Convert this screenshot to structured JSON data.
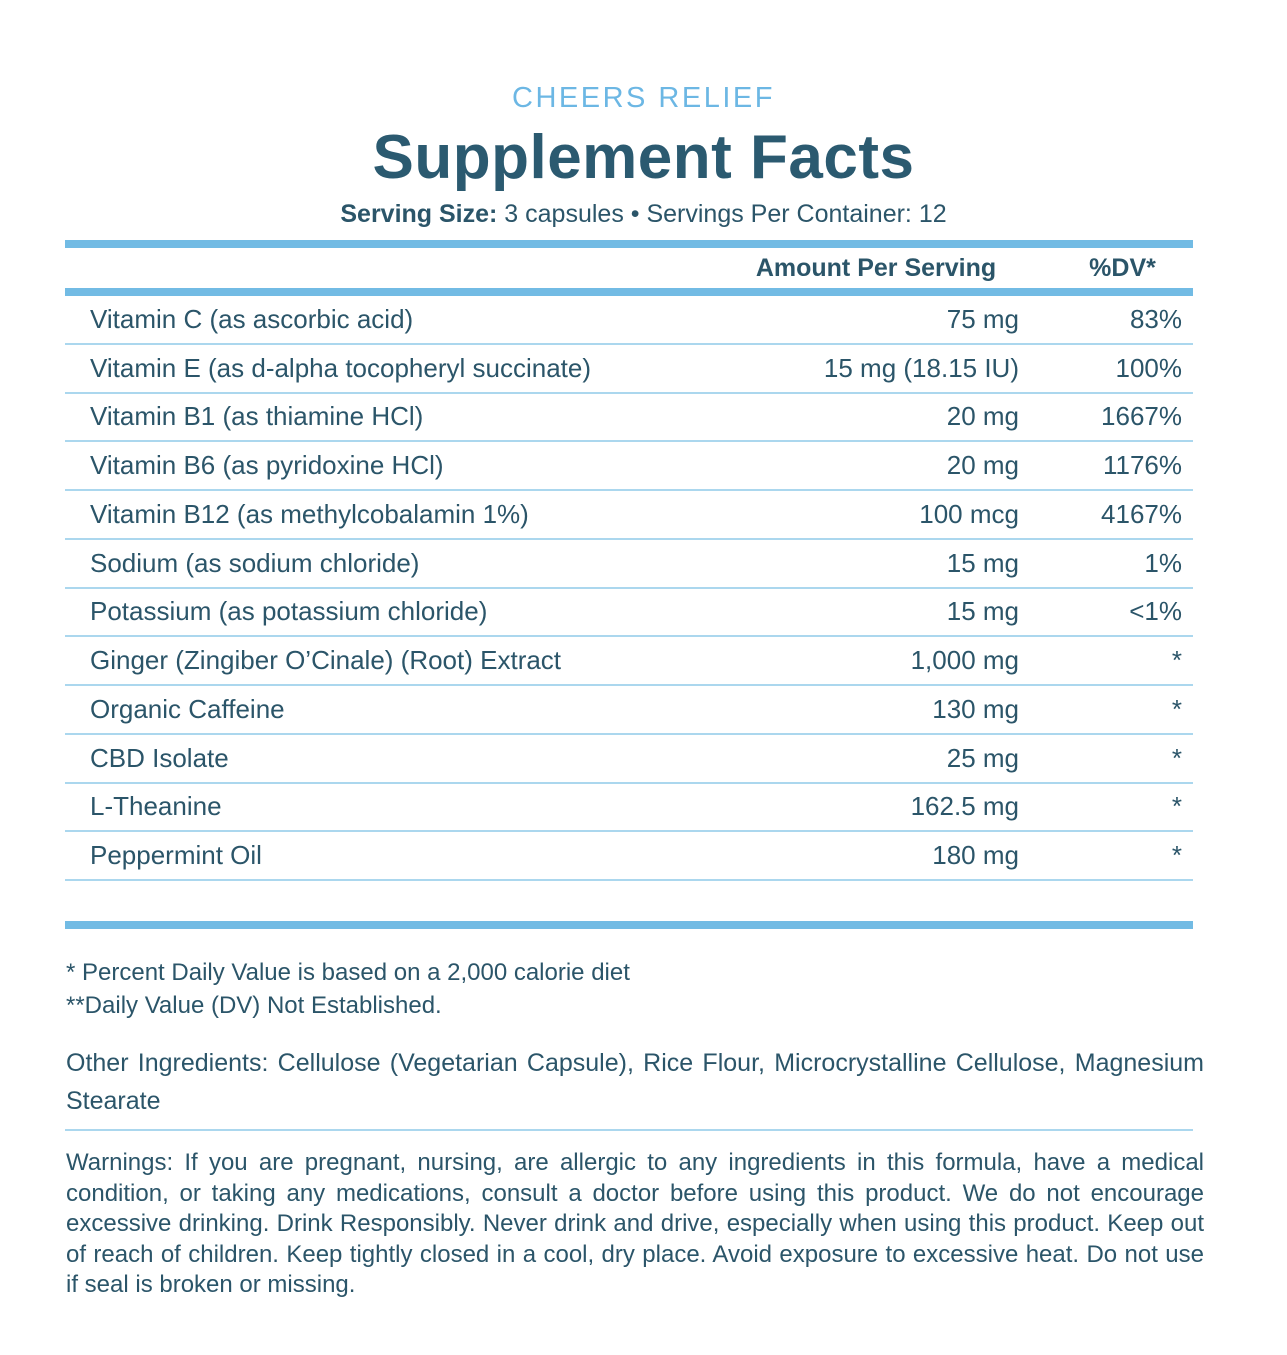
{
  "brand": "CHEERS RELIEF",
  "title": "Supplement Facts",
  "serving": {
    "label": "Serving Size:",
    "rest": " 3 capsules • Servings Per Container: 12"
  },
  "table": {
    "amount_header": "Amount Per Serving",
    "dv_header": "%DV*",
    "rows": [
      {
        "name": "Vitamin C (as ascorbic acid)",
        "amount": "75 mg",
        "dv": "83%"
      },
      {
        "name": "Vitamin E (as d-alpha tocopheryl succinate)",
        "amount": "15 mg (18.15 IU)",
        "dv": "100%"
      },
      {
        "name": "Vitamin B1 (as thiamine HCl)",
        "amount": "20 mg",
        "dv": "1667%"
      },
      {
        "name": "Vitamin B6 (as pyridoxine HCl)",
        "amount": "20 mg",
        "dv": "1176%"
      },
      {
        "name": "Vitamin B12 (as methylcobalamin 1%)",
        "amount": "100 mcg",
        "dv": "4167%"
      },
      {
        "name": "Sodium (as sodium chloride)",
        "amount": "15 mg",
        "dv": "1%"
      },
      {
        "name": "Potassium (as potassium chloride)",
        "amount": "15 mg",
        "dv": "<1%"
      },
      {
        "name": "Ginger (Zingiber O’Cinale) (Root) Extract",
        "amount": "1,000 mg",
        "dv": "*"
      },
      {
        "name": "Organic Caffeine",
        "amount": "130 mg",
        "dv": "*"
      },
      {
        "name": "CBD Isolate",
        "amount": "25 mg",
        "dv": "*"
      },
      {
        "name": "L-Theanine",
        "amount": "162.5 mg",
        "dv": "*"
      },
      {
        "name": "Peppermint Oil",
        "amount": "180 mg",
        "dv": "*"
      }
    ]
  },
  "footnotes": {
    "dv_note": "* Percent Daily Value is based on a 2,000 calorie diet",
    "not_established_note": "**Daily Value (DV) Not Established."
  },
  "other_ingredients": "Other Ingredients: Cellulose (Vegetarian Capsule), Rice Flour, Microcrystalline Cellulose, Magnesium Stearate",
  "warnings": "Warnings: If you are pregnant, nursing, are allergic to any ingredients in this formula, have a medical condition, or taking any medications, consult a doctor before using this product. We do not encourage excessive drinking. Drink Responsibly. Never drink and drive, especially when using this product. Keep out of reach of children. Keep tightly closed in a cool, dry place. Avoid exposure to excessive heat. Do not use if seal is broken or missing.",
  "colors": {
    "brand_blue": "#6cb7e4",
    "text_teal": "#2b5569",
    "title_teal": "#2b5a70",
    "thick_rule": "#72bbe4",
    "thin_rule": "#abd7ee"
  }
}
